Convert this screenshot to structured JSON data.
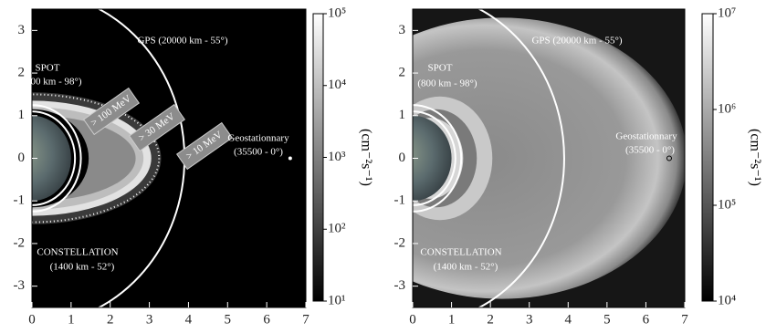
{
  "chart_data": [
    {
      "type": "heatmap",
      "xlim": [
        0,
        7
      ],
      "ylim": [
        -3.5,
        3.5
      ],
      "xticks": [
        0,
        1,
        2,
        3,
        4,
        5,
        6,
        7
      ],
      "yticks": [
        -3,
        -2,
        -1,
        0,
        1,
        2,
        3
      ],
      "colorbar": {
        "log": true,
        "lim": [
          10,
          100000
        ],
        "label": "(cm⁻²s⁻¹)",
        "ticks": [
          {
            "value": 10,
            "label": "10¹"
          },
          {
            "value": 100,
            "label": "10²"
          },
          {
            "value": 1000,
            "label": "10³"
          },
          {
            "value": 10000,
            "label": "10⁴"
          },
          {
            "value": 100000,
            "label": "10⁵"
          }
        ]
      },
      "annotations": [
        "GPS (20000 km - 55°)",
        "SPOT",
        "(800 km - 98°)",
        "> 100 MeV",
        "> 30 MeV",
        "> 10 MeV",
        "Geostationnary",
        "(35500 - 0°)",
        "CONSTELLATION",
        "(1400 km - 52°)"
      ]
    },
    {
      "type": "heatmap",
      "xlim": [
        0,
        7
      ],
      "ylim": [
        -3.5,
        3.5
      ],
      "xticks": [
        0,
        1,
        2,
        3,
        4,
        5,
        6,
        7
      ],
      "yticks": [
        -3,
        -2,
        -1,
        0,
        1,
        2,
        3
      ],
      "colorbar": {
        "log": true,
        "lim": [
          10000,
          10000000
        ],
        "label": "(cm⁻²s⁻¹)",
        "ticks": [
          {
            "value": 10000,
            "label": "10⁴"
          },
          {
            "value": 100000,
            "label": "10⁵"
          },
          {
            "value": 1000000,
            "label": "10⁶"
          },
          {
            "value": 10000000,
            "label": "10⁷"
          }
        ]
      },
      "annotations": [
        "GPS (20000 km - 55°)",
        "SPOT",
        "(800 km - 98°)",
        "Geostationnary",
        "(35500 - 0°)",
        "CONSTELLATION",
        "(1400 km - 52°)"
      ]
    }
  ]
}
